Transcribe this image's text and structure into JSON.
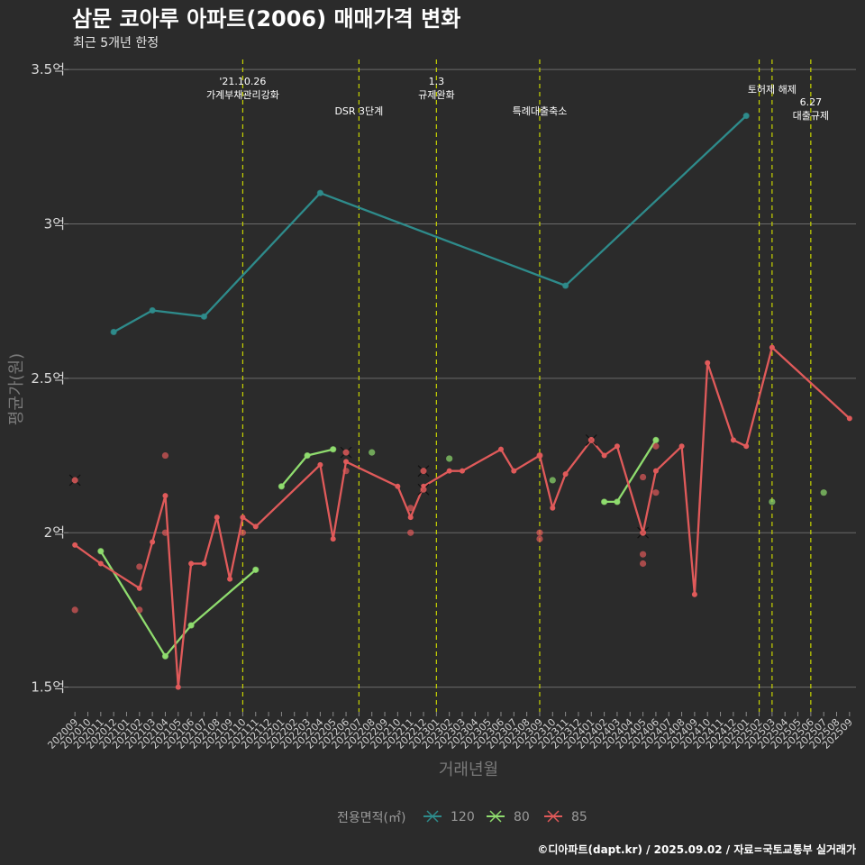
{
  "chart_data": {
    "type": "line",
    "title": "삼문 코아루 아파트(2006) 매매가격 변화",
    "subtitle": "최근 5개년 한정",
    "xlabel": "거래년월",
    "ylabel": "평균가(원)",
    "ylim": [
      1.42,
      3.55
    ],
    "yticks": [
      {
        "value": 1.5,
        "label": "1.5억"
      },
      {
        "value": 2.0,
        "label": "2억"
      },
      {
        "value": 2.5,
        "label": "2.5억"
      },
      {
        "value": 3.0,
        "label": "3억"
      },
      {
        "value": 3.5,
        "label": "3.5억"
      }
    ],
    "categories": [
      "202009",
      "202010",
      "202011",
      "202012",
      "202101",
      "202102",
      "202103",
      "202104",
      "202105",
      "202106",
      "202107",
      "202108",
      "202109",
      "202110",
      "202111",
      "202112",
      "202201",
      "202202",
      "202203",
      "202204",
      "202205",
      "202206",
      "202207",
      "202208",
      "202209",
      "202210",
      "202211",
      "202212",
      "202301",
      "202302",
      "202303",
      "202304",
      "202305",
      "202306",
      "202307",
      "202308",
      "202309",
      "202310",
      "202311",
      "202312",
      "202401",
      "202402",
      "202403",
      "202404",
      "202405",
      "202406",
      "202407",
      "202408",
      "202409",
      "202410",
      "202411",
      "202412",
      "202501",
      "202502",
      "202503",
      "202504",
      "202505",
      "202506",
      "202507",
      "202508",
      "202509"
    ],
    "events": [
      {
        "month": "202110",
        "lines": [
          "'21.10.26",
          "가계부채관리강화"
        ],
        "level": "high"
      },
      {
        "month": "202207",
        "lines": [
          "DSR 3단계"
        ],
        "level": "low"
      },
      {
        "month": "202301",
        "lines": [
          "1.3",
          "규제완화"
        ],
        "level": "high"
      },
      {
        "month": "202309",
        "lines": [
          "특례대출축소"
        ],
        "level": "low"
      },
      {
        "month": "202502",
        "lines": [
          ""
        ],
        "level": "none"
      },
      {
        "month": "202503",
        "lines": [
          "토허제 해제"
        ],
        "level": "mid"
      },
      {
        "month": "202506",
        "lines": [
          "6.27",
          "대출규제"
        ],
        "level": "low2"
      }
    ],
    "series": [
      {
        "name": "120",
        "color": "#2e8b8b",
        "line": [
          [
            "202012",
            2.65
          ],
          [
            "202103",
            2.72
          ],
          [
            "202107",
            2.7
          ],
          [
            "202204",
            3.1
          ],
          [
            "202311",
            2.8
          ],
          [
            "202501",
            3.35
          ]
        ],
        "points": [
          [
            "202012",
            2.65
          ],
          [
            "202103",
            2.72
          ],
          [
            "202107",
            2.7
          ],
          [
            "202204",
            3.1
          ],
          [
            "202311",
            2.8
          ],
          [
            "202501",
            3.35
          ]
        ],
        "crosses": []
      },
      {
        "name": "80",
        "color": "#8fdc6e",
        "line": [
          [
            "202011",
            1.94
          ],
          [
            "202104",
            1.6
          ],
          [
            "202106",
            1.7
          ],
          [
            "202111",
            1.88
          ]
        ],
        "line2": [
          [
            "202201",
            2.15
          ],
          [
            "202203",
            2.25
          ],
          [
            "202205",
            2.27
          ]
        ],
        "line3": [
          [
            "202402",
            2.1
          ],
          [
            "202403",
            2.1
          ],
          [
            "202406",
            2.3
          ]
        ],
        "points": [
          [
            "202011",
            1.94
          ],
          [
            "202104",
            1.6
          ],
          [
            "202106",
            1.7
          ],
          [
            "202111",
            1.88
          ],
          [
            "202201",
            2.15
          ],
          [
            "202203",
            2.25
          ],
          [
            "202205",
            2.27
          ],
          [
            "202208",
            2.26
          ],
          [
            "202302",
            2.24
          ],
          [
            "202310",
            2.17
          ],
          [
            "202402",
            2.1
          ],
          [
            "202403",
            2.1
          ],
          [
            "202406",
            2.3
          ],
          [
            "202503",
            2.1
          ],
          [
            "202507",
            2.13
          ]
        ],
        "crosses": []
      },
      {
        "name": "85",
        "color": "#e05a5a",
        "line": [
          [
            "202009",
            1.96
          ],
          [
            "202011",
            1.9
          ],
          [
            "202102",
            1.82
          ],
          [
            "202103",
            1.97
          ],
          [
            "202104",
            2.12
          ],
          [
            "202105",
            1.5
          ],
          [
            "202106",
            1.9
          ],
          [
            "202107",
            1.9
          ],
          [
            "202108",
            2.05
          ],
          [
            "202109",
            1.85
          ],
          [
            "202110",
            2.05
          ],
          [
            "202111",
            2.02
          ],
          [
            "202204",
            2.22
          ],
          [
            "202205",
            1.98
          ],
          [
            "202206",
            2.23
          ],
          [
            "202210",
            2.15
          ],
          [
            "202211",
            2.05
          ],
          [
            "202212",
            2.15
          ],
          [
            "202302",
            2.2
          ],
          [
            "202303",
            2.2
          ],
          [
            "202306",
            2.27
          ],
          [
            "202307",
            2.2
          ],
          [
            "202309",
            2.25
          ],
          [
            "202310",
            2.08
          ],
          [
            "202311",
            2.19
          ],
          [
            "202401",
            2.3
          ],
          [
            "202402",
            2.25
          ],
          [
            "202403",
            2.28
          ],
          [
            "202405",
            2.0
          ],
          [
            "202406",
            2.2
          ],
          [
            "202408",
            2.28
          ],
          [
            "202409",
            1.8
          ],
          [
            "202410",
            2.55
          ],
          [
            "202412",
            2.3
          ],
          [
            "202501",
            2.28
          ],
          [
            "202503",
            2.6
          ],
          [
            "202509",
            2.37
          ]
        ],
        "points": [
          [
            "202009",
            1.75
          ],
          [
            "202102",
            1.75
          ],
          [
            "202102",
            1.89
          ],
          [
            "202104",
            2.25
          ],
          [
            "202104",
            2.0
          ],
          [
            "202110",
            2.0
          ],
          [
            "202206",
            2.2
          ],
          [
            "202211",
            2.08
          ],
          [
            "202211",
            2.0
          ],
          [
            "202309",
            1.98
          ],
          [
            "202309",
            2.0
          ],
          [
            "202309",
            2.25
          ],
          [
            "202405",
            2.18
          ],
          [
            "202405",
            1.93
          ],
          [
            "202405",
            1.9
          ],
          [
            "202406",
            2.13
          ],
          [
            "202406",
            2.28
          ]
        ],
        "crosses": [
          [
            "202009",
            2.17
          ],
          [
            "202206",
            2.26
          ],
          [
            "202212",
            2.2
          ],
          [
            "202212",
            2.14
          ],
          [
            "202401",
            2.3
          ],
          [
            "202405",
            2.0
          ]
        ]
      }
    ],
    "legend": {
      "title": "전용면적(㎡)",
      "position": "bottom"
    },
    "caption": "©디아파트(dapt.kr) / 2025.09.02 / 자료=국토교통부 실거래가"
  }
}
